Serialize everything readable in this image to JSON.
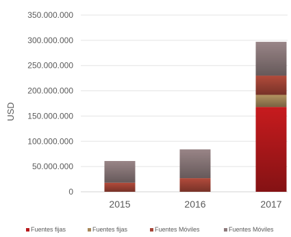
{
  "chart_data": {
    "type": "bar",
    "stacked": true,
    "title": "",
    "xlabel": "",
    "ylabel": "USD",
    "ylim": [
      0,
      350000000
    ],
    "yticks": [
      {
        "value": 0,
        "label": "0"
      },
      {
        "value": 50000000,
        "label": "50.000.000"
      },
      {
        "value": 100000000,
        "label": "100.000.000"
      },
      {
        "value": 150000000,
        "label": "150.000.000"
      },
      {
        "value": 200000000,
        "label": "200.000.000"
      },
      {
        "value": 250000000,
        "label": "250.000.000"
      },
      {
        "value": 300000000,
        "label": "300.000.000"
      },
      {
        "value": 350000000,
        "label": "350.000.000"
      }
    ],
    "grid": true,
    "legend_position": "bottom",
    "categories": [
      "2015",
      "2016",
      "2017"
    ],
    "series": [
      {
        "name": "Fuentes fijas",
        "color": "#B8191C",
        "values": [
          0,
          0,
          168000000
        ]
      },
      {
        "name": "Fuentes fijas",
        "color": "#A6885A",
        "values": [
          0,
          0,
          24000000
        ]
      },
      {
        "name": "Fuentes Móviles",
        "color": "#A54537",
        "values": [
          18000000,
          27000000,
          38000000
        ]
      },
      {
        "name": "Fuentes Móviles",
        "color": "#8E7B7D",
        "values": [
          43000000,
          57000000,
          67000000
        ]
      }
    ]
  }
}
